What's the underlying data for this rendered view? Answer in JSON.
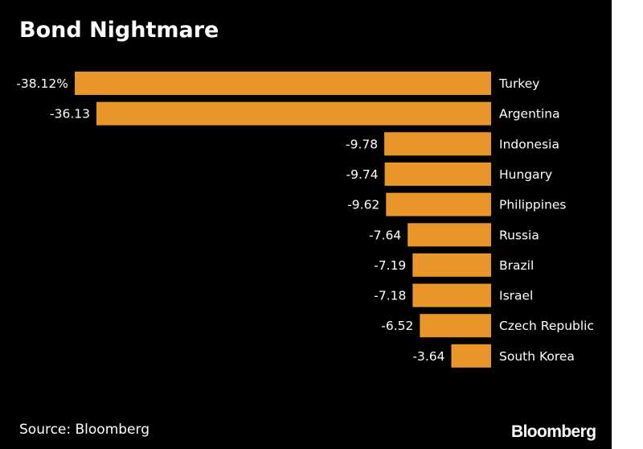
{
  "title": "Bond Nightmare",
  "source": "Source: Bloomberg",
  "brand": "Bloomberg",
  "colors": {
    "background": "#000000",
    "bar": "#E8952A",
    "text": "#FFFFFF"
  },
  "chart_data": {
    "type": "bar",
    "orientation": "horizontal",
    "title": "Bond Nightmare",
    "categories": [
      "Turkey",
      "Argentina",
      "Indonesia",
      "Hungary",
      "Philippines",
      "Russia",
      "Brazil",
      "Israel",
      "Czech Republic",
      "South Korea"
    ],
    "values": [
      -38.12,
      -36.13,
      -9.78,
      -9.74,
      -9.62,
      -7.64,
      -7.19,
      -7.18,
      -6.52,
      -3.64
    ],
    "value_labels": [
      "-38.12%",
      "-36.13",
      "-9.78",
      "-9.74",
      "-9.62",
      "-7.64",
      "-7.19",
      "-7.18",
      "-6.52",
      "-3.64"
    ],
    "xlim": [
      -38.12,
      0
    ],
    "grid": false,
    "legend": "none"
  }
}
